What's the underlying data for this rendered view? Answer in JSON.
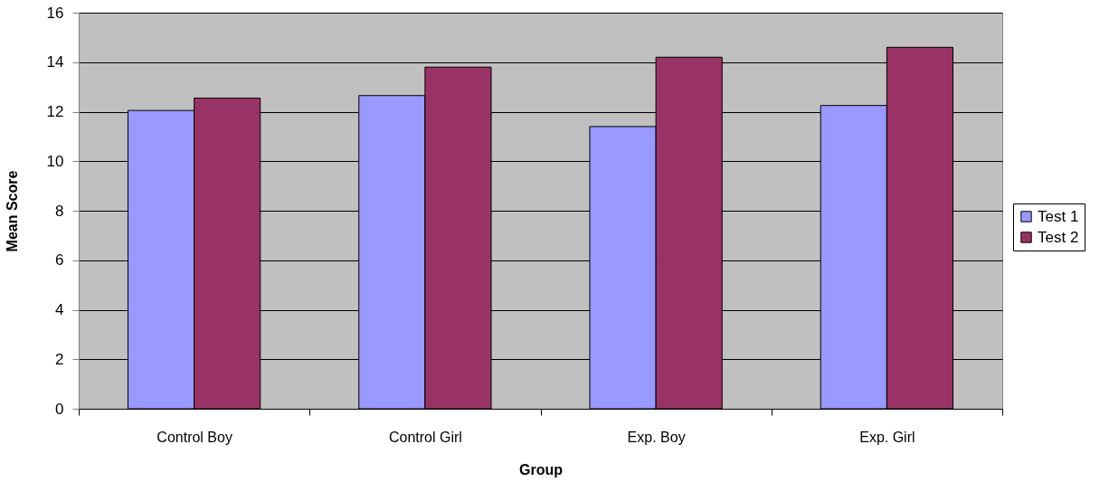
{
  "chart_data": {
    "type": "bar",
    "xlabel": "Group",
    "ylabel": "Mean Score",
    "categories": [
      "Control Boy",
      "Control Girl",
      "Exp. Boy",
      "Exp. Girl"
    ],
    "series": [
      {
        "name": "Test 1",
        "color": "#9999ff",
        "values": [
          12.05,
          12.65,
          11.4,
          12.25
        ]
      },
      {
        "name": "Test 2",
        "color": "#993366",
        "values": [
          12.55,
          13.8,
          14.2,
          14.6
        ]
      }
    ],
    "ylim": [
      0,
      16
    ],
    "yticks": [
      0,
      2,
      4,
      6,
      8,
      10,
      12,
      14,
      16
    ],
    "grid": "y",
    "legend": "right"
  }
}
